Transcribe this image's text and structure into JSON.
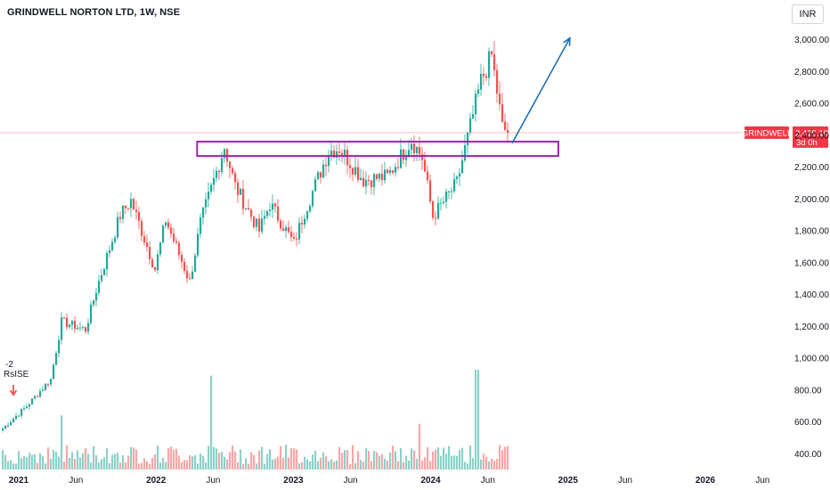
{
  "header": {
    "title": "GRINDWELL NORTON LTD, 1W, NSE"
  },
  "currency_button": "INR",
  "price_badge": {
    "symbol": "GRINDWELL",
    "price": "2,416.10",
    "countdown": "3d 0h",
    "color": "#f23645"
  },
  "annotation": {
    "count": "-2",
    "label": "RsISE"
  },
  "colors": {
    "up": "#26a69a",
    "down": "#ef5350",
    "zone": "#9c27b0",
    "arrow": "#1e6fb0",
    "price_line": "#f23645"
  },
  "chart_data": {
    "type": "candlestick",
    "x_ticks": [
      "2021",
      "Jun",
      "2022",
      "Jun",
      "2023",
      "Jun",
      "2024",
      "Jun",
      "2025",
      "Jun",
      "2026",
      "Jun"
    ],
    "x_ticks_bold": [
      "2021",
      "2022",
      "2023",
      "2024",
      "2025",
      "2026"
    ],
    "y_ticks": [
      "400.00",
      "600.00",
      "800.00",
      "1,000.00",
      "1,200.00",
      "1,400.00",
      "1,600.00",
      "1,800.00",
      "2,000.00",
      "2,200.00",
      "2,400.00",
      "2,600.00",
      "2,800.00",
      "3,000.00"
    ],
    "ylim": [
      360,
      3050
    ],
    "last_price": 2416.1,
    "zone": {
      "low": 2270,
      "high": 2360,
      "start": "2022-07",
      "end": "2024-12"
    },
    "projection": {
      "from_price": 2350,
      "to_price": 3010,
      "start": "2024-08",
      "end": "2024-12"
    },
    "close_path": [
      [
        "2021-01",
        560
      ],
      [
        "2021-03",
        700
      ],
      [
        "2021-05",
        870
      ],
      [
        "2021-06",
        1230
      ],
      [
        "2021-08",
        1180
      ],
      [
        "2021-09",
        1430
      ],
      [
        "2021-11",
        1900
      ],
      [
        "2021-12",
        1990
      ],
      [
        "2022-02",
        1560
      ],
      [
        "2022-03",
        1870
      ],
      [
        "2022-05",
        1480
      ],
      [
        "2022-06",
        1850
      ],
      [
        "2022-08",
        2330
      ],
      [
        "2022-09",
        2080
      ],
      [
        "2022-11",
        1800
      ],
      [
        "2022-12",
        1970
      ],
      [
        "2023-02",
        1720
      ],
      [
        "2023-03",
        1920
      ],
      [
        "2023-05",
        2300
      ],
      [
        "2023-06",
        2320
      ],
      [
        "2023-08",
        2120
      ],
      [
        "2023-10",
        2140
      ],
      [
        "2023-12",
        2370
      ],
      [
        "2024-01",
        2260
      ],
      [
        "2024-02",
        1890
      ],
      [
        "2024-04",
        2100
      ],
      [
        "2024-06",
        2740
      ],
      [
        "2024-07",
        2900
      ],
      [
        "2024-08",
        2450
      ],
      [
        "2024-08",
        2416
      ]
    ],
    "volume_spikes": [
      {
        "date": "2021-06",
        "level": 0.45
      },
      {
        "date": "2022-07",
        "level": 0.78
      },
      {
        "date": "2024-01",
        "level": 0.38
      },
      {
        "date": "2024-06",
        "level": 0.83
      }
    ]
  }
}
